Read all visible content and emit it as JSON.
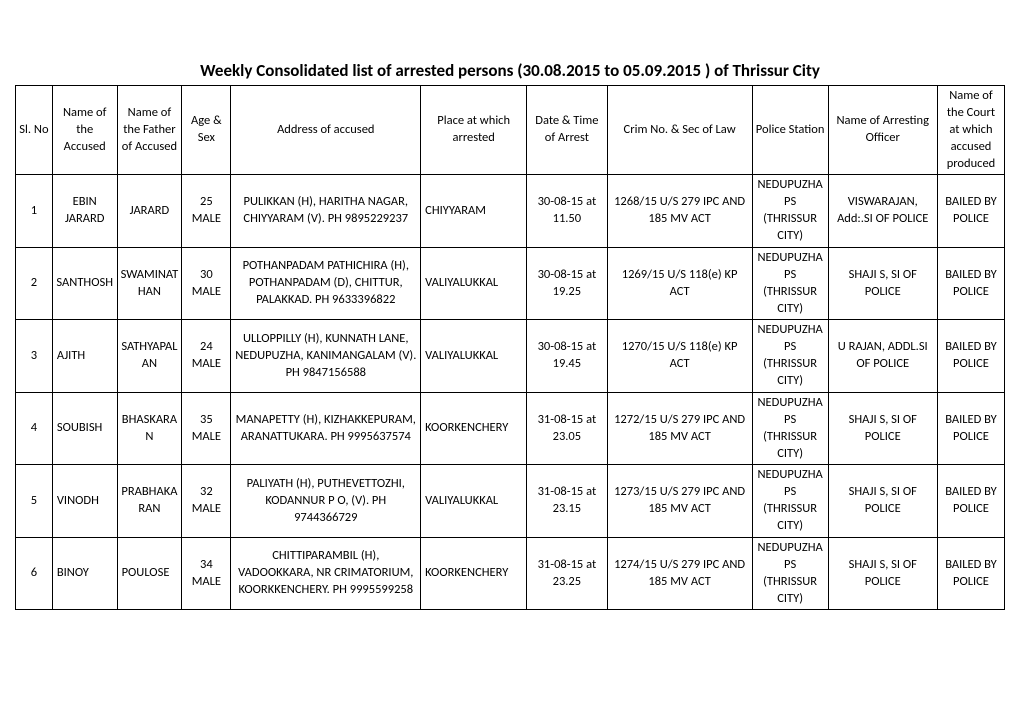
{
  "title": "Weekly Consolidated list of  arrested persons (30.08.2015 to 05.09.2015 ) of Thrissur City",
  "headers": {
    "sl": "Sl. No",
    "name": "Name of the Accused",
    "father": "Name of the Father of Accused",
    "age": "Age & Sex",
    "address": "Address of accused",
    "place": "Place at which arrested",
    "date": "Date & Time of Arrest",
    "crim": "Crim No. & Sec of Law",
    "ps": "Police Station",
    "officer": "Name of Arresting Officer",
    "court": "Name of the Court at which accused produced"
  },
  "rows": [
    {
      "sl": "1",
      "name": "EBIN JARARD",
      "father": "JARARD",
      "age": "25 MALE",
      "address": "PULIKKAN (H), HARITHA NAGAR, CHIYYARAM (V). PH 9895229237",
      "place": "CHIYYARAM",
      "date": "30-08-15 at 11.50",
      "crim": "1268/15 U/S 279 IPC AND 185 MV ACT",
      "ps": "NEDUPUZHA PS (THRISSUR CITY)",
      "officer": "VISWARAJAN, Add:.SI OF POLICE",
      "court": "BAILED BY POLICE"
    },
    {
      "sl": "2",
      "name": "SANTHOSH",
      "father": "SWAMINATHAN",
      "age": "30 MALE",
      "address": "POTHANPADAM PATHICHIRA (H), POTHANPADAM (D), CHITTUR, PALAKKAD. PH 9633396822",
      "place": "VALIYALUKKAL",
      "date": "30-08-15 at 19.25",
      "crim": "1269/15 U/S 118(e) KP ACT",
      "ps": "NEDUPUZHA PS (THRISSUR CITY)",
      "officer": "SHAJI S, SI OF POLICE",
      "court": "BAILED BY POLICE"
    },
    {
      "sl": "3",
      "name": "AJITH",
      "father": "SATHYAPALAN",
      "age": "24 MALE",
      "address": "ULLOPPILLY (H), KUNNATH LANE, NEDUPUZHA, KANIMANGALAM (V). PH 9847156588",
      "place": "VALIYALUKKAL",
      "date": "30-08-15 at 19.45",
      "crim": "1270/15 U/S 118(e) KP ACT",
      "ps": "NEDUPUZHA PS (THRISSUR CITY)",
      "officer": "U RAJAN, ADDL.SI OF POLICE",
      "court": "BAILED BY POLICE"
    },
    {
      "sl": "4",
      "name": "SOUBISH",
      "father": "BHASKARAN",
      "age": "35 MALE",
      "address": "MANAPETTY (H), KIZHAKKEPURAM, ARANATTUKARA. PH 9995637574",
      "place": "KOORKENCHERY",
      "date": "31-08-15 at 23.05",
      "crim": "1272/15 U/S 279 IPC AND 185 MV ACT",
      "ps": "NEDUPUZHA PS (THRISSUR CITY)",
      "officer": "SHAJI S, SI OF POLICE",
      "court": "BAILED BY POLICE"
    },
    {
      "sl": "5",
      "name": "VINODH",
      "father": "PRABHAKARAN",
      "age": "32 MALE",
      "address": "PALIYATH (H), PUTHEVETTOZHI,  KODANNUR P O, (V). PH 9744366729",
      "place": "VALIYALUKKAL",
      "date": "31-08-15 at 23.15",
      "crim": "1273/15 U/S 279 IPC AND 185 MV ACT",
      "ps": "NEDUPUZHA PS (THRISSUR CITY)",
      "officer": "SHAJI S, SI OF POLICE",
      "court": "BAILED BY POLICE"
    },
    {
      "sl": "6",
      "name": "BINOY",
      "father": "POULOSE",
      "age": "34 MALE",
      "address": "CHITTIPARAMBIL (H), VADOOKKARA, NR CRIMATORIUM, KOORKKENCHERY. PH 9995599258",
      "place": "KOORKENCHERY",
      "date": "31-08-15 at 23.25",
      "crim": "1274/15 U/S 279 IPC AND 185 MV ACT",
      "ps": "NEDUPUZHA PS (THRISSUR CITY)",
      "officer": "SHAJI S, SI OF POLICE",
      "court": "BAILED BY POLICE"
    }
  ]
}
